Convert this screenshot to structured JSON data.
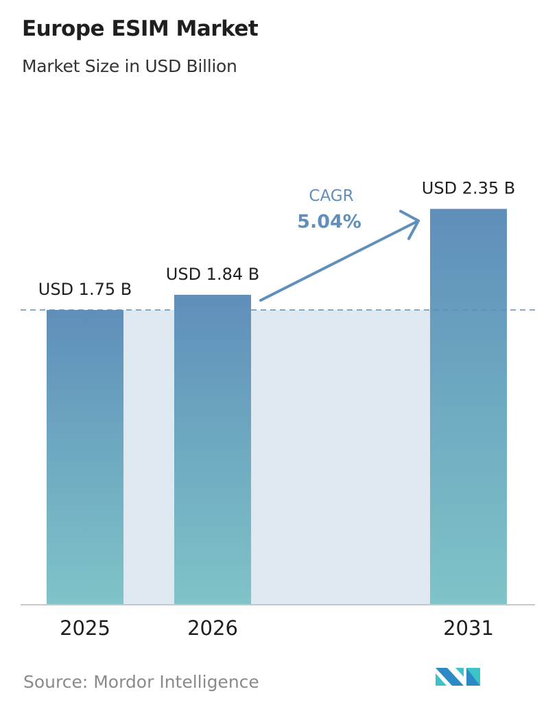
{
  "header": {
    "title": "Europe ESIM Market",
    "subtitle": "Market Size in USD Billion"
  },
  "footer": {
    "source": "Source:  Mordor Intelligence",
    "logo_text": "MI"
  },
  "chart_data": {
    "type": "bar",
    "title": "Europe ESIM Market",
    "subtitle": "Market Size in USD Billion",
    "categories": [
      "2025",
      "2026",
      "2031"
    ],
    "values": [
      1.75,
      1.84,
      2.35
    ],
    "data_labels": [
      "USD 1.75 B",
      "USD 1.84 B",
      "USD 2.35 B"
    ],
    "annotation": {
      "label": "CAGR",
      "value": "5.04%"
    },
    "ylim": [
      0,
      2.35
    ],
    "grid": false,
    "reference_line": 1.75,
    "colors": {
      "bar_top": "#5f8fba",
      "bar_bottom": "#7fc4c8",
      "fill": "#dde8f0",
      "cagr": "#5f8fba",
      "logo1": "#2b8ac4",
      "logo2": "#3cc3c9"
    }
  }
}
